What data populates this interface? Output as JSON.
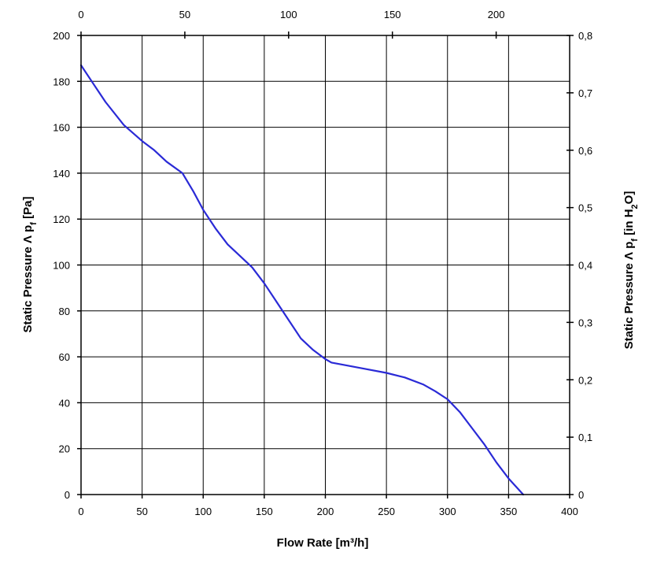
{
  "chart_data": {
    "type": "line",
    "title": "",
    "xlabel": "Flow Rate [m³/h]",
    "ylabel": "Static Pressure Δ pf [Pa]",
    "ylabel_parts": {
      "main": "Static Pressure Λ p",
      "sub": "f",
      "unit": " [Pa]"
    },
    "y2label": "Static Pressure Δ pf [in H2O]",
    "y2label_parts": {
      "main": "Static Pressure Λ p",
      "sub": "f",
      "unit_pre": " [in H",
      "unit_sub": "2",
      "unit_post": "O]"
    },
    "xlim": [
      0,
      400
    ],
    "ylim": [
      0,
      200
    ],
    "x2lim": [
      0,
      235.4
    ],
    "y2lim": [
      0,
      0.8
    ],
    "x_ticks": [
      "0",
      "50",
      "100",
      "150",
      "200",
      "250",
      "300",
      "350",
      "400"
    ],
    "y_ticks": [
      "0",
      "20",
      "40",
      "60",
      "80",
      "100",
      "120",
      "140",
      "160",
      "180",
      "200"
    ],
    "x2_ticks": [
      "0",
      "50",
      "100",
      "150",
      "200"
    ],
    "y2_ticks": [
      "0",
      "0,1",
      "0,2",
      "0,3",
      "0,4",
      "0,5",
      "0,6",
      "0,7",
      "0,8"
    ],
    "grid": true,
    "line_color": "#2a2ad6",
    "series": [
      {
        "x": [
          0,
          10,
          20,
          35,
          50,
          60,
          70,
          83,
          92,
          100,
          110,
          120,
          130,
          140,
          150,
          160,
          170,
          180,
          190,
          200,
          205,
          215,
          230,
          250,
          265,
          280,
          290,
          300,
          310,
          320,
          330,
          340,
          350,
          362
        ],
        "y": [
          187,
          179,
          171,
          161,
          154,
          150,
          145,
          140,
          132,
          124,
          116,
          109,
          104,
          99,
          92,
          84,
          76,
          68,
          63,
          59,
          57.5,
          56.5,
          55,
          53,
          51,
          48,
          45,
          41.5,
          36,
          29,
          22,
          14,
          7,
          0
        ]
      }
    ]
  }
}
